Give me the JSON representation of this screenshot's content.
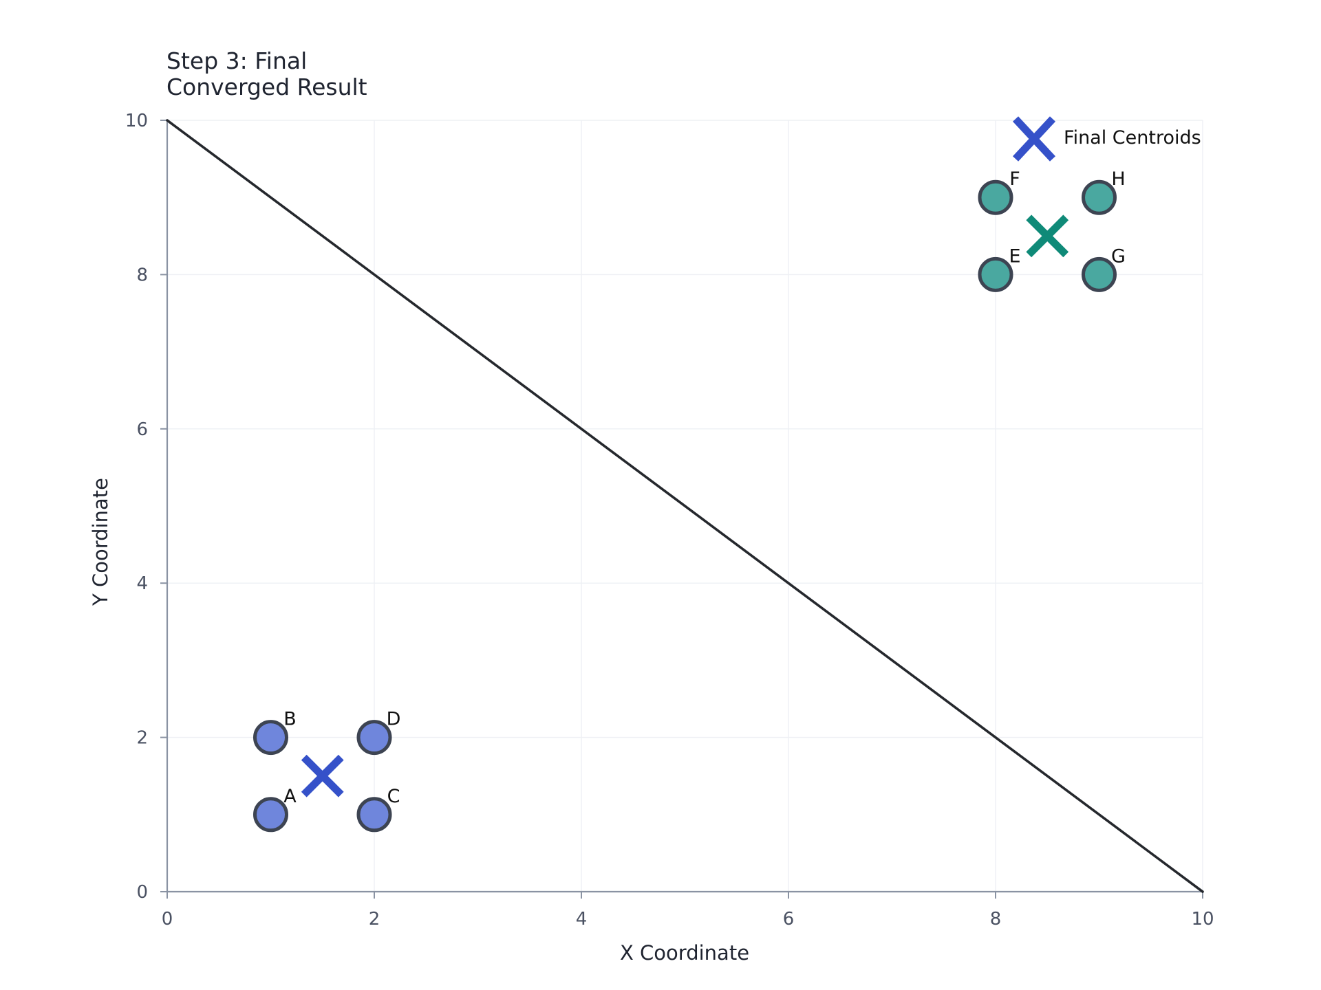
{
  "chart_data": {
    "type": "scatter",
    "title_lines": [
      "Step 3: Final",
      "Converged Result"
    ],
    "xlabel": "X Coordinate",
    "ylabel": "Y Coordinate",
    "xlim": [
      0,
      10
    ],
    "ylim": [
      0,
      10
    ],
    "xticks": [
      "0",
      "2",
      "4",
      "6",
      "8",
      "10"
    ],
    "yticks": [
      "0",
      "2",
      "4",
      "6",
      "8",
      "10"
    ],
    "grid": true,
    "legend": {
      "placement": "top-right",
      "label": "Final Centroids",
      "color": "#3551c9"
    },
    "boundary_line": {
      "points": [
        [
          0,
          10
        ],
        [
          10,
          0
        ]
      ],
      "color": "#25282d"
    },
    "points": [
      {
        "label": "A",
        "x": 1,
        "y": 1,
        "cluster": 1
      },
      {
        "label": "B",
        "x": 1,
        "y": 2,
        "cluster": 1
      },
      {
        "label": "C",
        "x": 2,
        "y": 1,
        "cluster": 1
      },
      {
        "label": "D",
        "x": 2,
        "y": 2,
        "cluster": 1
      },
      {
        "label": "E",
        "x": 8,
        "y": 8,
        "cluster": 2
      },
      {
        "label": "F",
        "x": 8,
        "y": 9,
        "cluster": 2
      },
      {
        "label": "G",
        "x": 9,
        "y": 8,
        "cluster": 2
      },
      {
        "label": "H",
        "x": 9,
        "y": 9,
        "cluster": 2
      }
    ],
    "centroids": [
      {
        "x": 1.5,
        "y": 1.5,
        "cluster": 1
      },
      {
        "x": 8.5,
        "y": 8.5,
        "cluster": 2
      }
    ],
    "cluster_colors": {
      "1": {
        "fill": "#6f86dc",
        "centroid": "#3551c9"
      },
      "2": {
        "fill": "#4aa8a0",
        "centroid": "#0f8a78"
      }
    },
    "point_edge_color": "#3d4452",
    "axis_color": "#8a93a3",
    "grid_color": "#eef0f4"
  }
}
